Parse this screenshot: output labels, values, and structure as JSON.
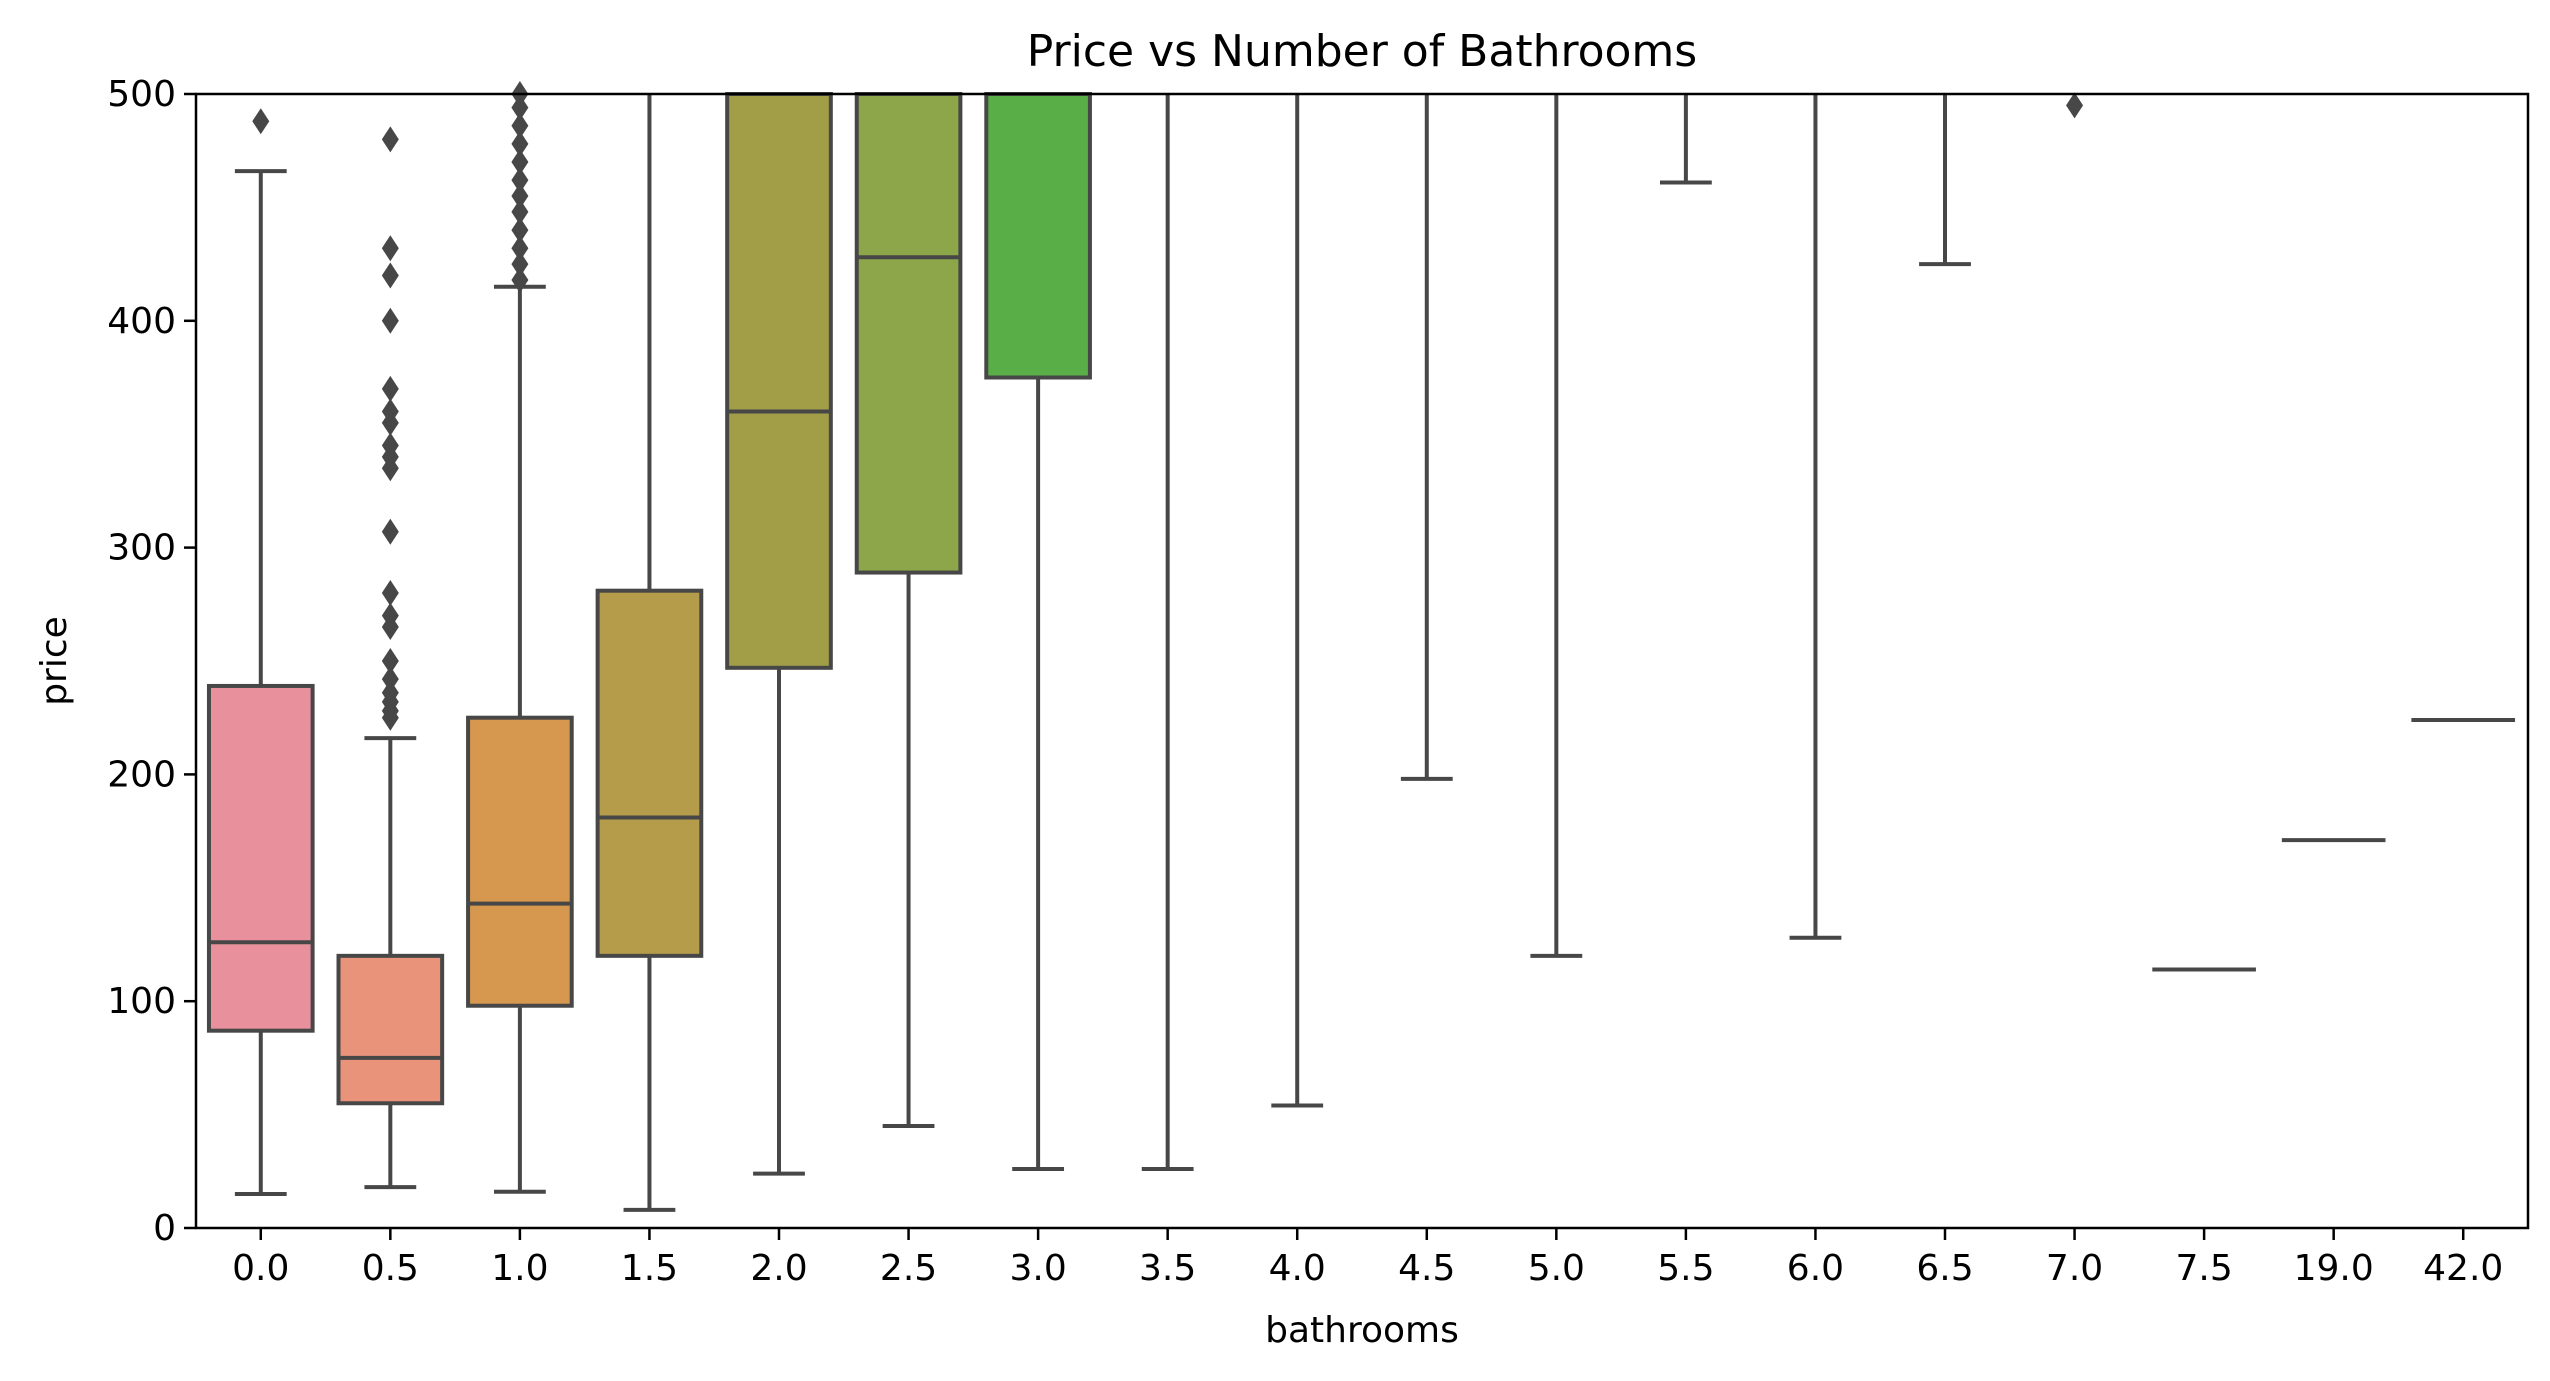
{
  "chart_data": {
    "type": "box",
    "title": "Price vs Number of Bathrooms",
    "xlabel": "bathrooms",
    "ylabel": "price",
    "ylim": [
      0,
      500
    ],
    "yticks": [
      0,
      100,
      200,
      300,
      400,
      500
    ],
    "grid": false,
    "legend": "none",
    "categories": [
      "0.0",
      "0.5",
      "1.0",
      "1.5",
      "2.0",
      "2.5",
      "3.0",
      "3.5",
      "4.0",
      "4.5",
      "5.0",
      "5.5",
      "6.0",
      "6.5",
      "7.0",
      "7.5",
      "19.0",
      "42.0"
    ],
    "boxes": [
      {
        "category": "0.0",
        "whisker_low": 15,
        "q1": 87,
        "median": 126,
        "q3": 239,
        "whisker_high": 466,
        "outliers": [
          488
        ],
        "color": "#e8909c"
      },
      {
        "category": "0.5",
        "whisker_low": 18,
        "q1": 55,
        "median": 75,
        "q3": 120,
        "whisker_high": 216,
        "outliers": [
          225,
          228,
          232,
          236,
          242,
          250,
          265,
          270,
          280,
          307,
          335,
          340,
          345,
          355,
          360,
          370,
          400,
          420,
          432,
          480
        ],
        "color": "#e8937a"
      },
      {
        "category": "1.0",
        "whisker_low": 16,
        "q1": 98,
        "median": 143,
        "q3": 225,
        "whisker_high": 415,
        "outliers": [
          418,
          425,
          432,
          440,
          448,
          455,
          462,
          470,
          478,
          486,
          494,
          500
        ],
        "color": "#d6984e"
      },
      {
        "category": "1.5",
        "whisker_low": 8,
        "q1": 120,
        "median": 181,
        "q3": 281,
        "whisker_high": 500,
        "outliers": [],
        "color": "#b59c4b"
      },
      {
        "category": "2.0",
        "whisker_low": 24,
        "q1": 247,
        "median": 360,
        "q3": 500,
        "whisker_high": 500,
        "outliers": [],
        "color": "#a29e48"
      },
      {
        "category": "2.5",
        "whisker_low": 45,
        "q1": 289,
        "median": 428,
        "q3": 500,
        "whisker_high": 500,
        "outliers": [],
        "color": "#8da649"
      },
      {
        "category": "3.0",
        "whisker_low": 26,
        "q1": 375,
        "median": 500,
        "q3": 500,
        "whisker_high": 500,
        "outliers": [],
        "color": "#5aae47"
      },
      {
        "category": "3.5",
        "whisker_low": 26,
        "whisker_high": 500,
        "outliers": []
      },
      {
        "category": "4.0",
        "whisker_low": 54,
        "whisker_high": 500,
        "outliers": []
      },
      {
        "category": "4.5",
        "whisker_low": 198,
        "whisker_high": 500,
        "outliers": []
      },
      {
        "category": "5.0",
        "whisker_low": 120,
        "whisker_high": 500,
        "outliers": []
      },
      {
        "category": "5.5",
        "whisker_low": 461,
        "whisker_high": 500,
        "outliers": []
      },
      {
        "category": "6.0",
        "whisker_low": 128,
        "whisker_high": 500,
        "outliers": []
      },
      {
        "category": "6.5",
        "whisker_low": 425,
        "whisker_high": 500,
        "outliers": []
      },
      {
        "category": "7.0",
        "outliers": [
          495
        ]
      },
      {
        "category": "7.5",
        "median": 114
      },
      {
        "category": "19.0",
        "median": 171
      },
      {
        "category": "42.0",
        "median": 224
      }
    ]
  }
}
